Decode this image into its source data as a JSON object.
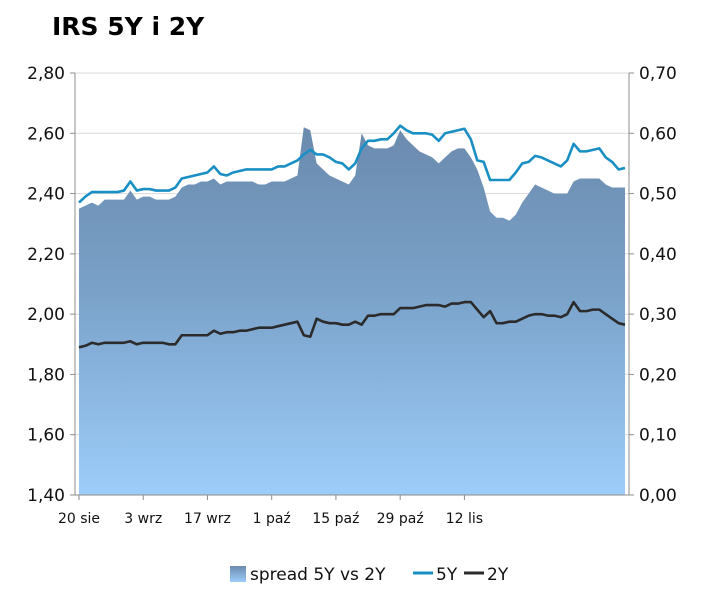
{
  "chart_data": {
    "type": "area",
    "title": "IRS 5Y i 2Y",
    "y_left": {
      "min": 1.4,
      "max": 2.8,
      "ticks": [
        "1,40",
        "1,60",
        "1,80",
        "2,00",
        "2,20",
        "2,40",
        "2,60",
        "2,80"
      ]
    },
    "y_right": {
      "min": 0.0,
      "max": 0.7,
      "ticks": [
        "0,00",
        "0,10",
        "0,20",
        "0,30",
        "0,40",
        "0,50",
        "0,60",
        "0,70"
      ]
    },
    "x_tick_labels": [
      {
        "label": "20 sie",
        "index": 0
      },
      {
        "label": "3 wrz",
        "index": 10
      },
      {
        "label": "17 wrz",
        "index": 20
      },
      {
        "label": "1 paź",
        "index": 30
      },
      {
        "label": "15 paź",
        "index": 40
      },
      {
        "label": "29 paź",
        "index": 50
      },
      {
        "label": "12 lis",
        "index": 60
      }
    ],
    "grid": "horizontal",
    "legend_position": "bottom",
    "legend": [
      "spread 5Y vs 2Y",
      "5Y",
      "2Y"
    ],
    "series": [
      {
        "name": "5Y",
        "axis": "left",
        "color": "#1a8fc4",
        "values": [
          2.37,
          2.39,
          2.405,
          2.405,
          2.405,
          2.405,
          2.405,
          2.41,
          2.44,
          2.41,
          2.415,
          2.415,
          2.41,
          2.41,
          2.41,
          2.42,
          2.45,
          2.455,
          2.46,
          2.465,
          2.47,
          2.49,
          2.465,
          2.46,
          2.47,
          2.475,
          2.48,
          2.48,
          2.48,
          2.48,
          2.48,
          2.49,
          2.49,
          2.5,
          2.51,
          2.53,
          2.545,
          2.53,
          2.53,
          2.52,
          2.505,
          2.5,
          2.48,
          2.5,
          2.55,
          2.575,
          2.575,
          2.58,
          2.58,
          2.6,
          2.625,
          2.61,
          2.6,
          2.6,
          2.6,
          2.595,
          2.575,
          2.6,
          2.605,
          2.61,
          2.615,
          2.58,
          2.51,
          2.505,
          2.445,
          2.445,
          2.445,
          2.445,
          2.47,
          2.5,
          2.505,
          2.525,
          2.52,
          2.51,
          2.5,
          2.49,
          2.51,
          2.565,
          2.54,
          2.54,
          2.545,
          2.55,
          2.52,
          2.505,
          2.48,
          2.485
        ]
      },
      {
        "name": "2Y",
        "axis": "left",
        "color": "#2b2b2b",
        "values": [
          1.89,
          1.895,
          1.905,
          1.9,
          1.905,
          1.905,
          1.905,
          1.905,
          1.91,
          1.9,
          1.905,
          1.905,
          1.905,
          1.905,
          1.9,
          1.9,
          1.93,
          1.93,
          1.93,
          1.93,
          1.93,
          1.945,
          1.935,
          1.94,
          1.94,
          1.945,
          1.945,
          1.95,
          1.955,
          1.955,
          1.955,
          1.96,
          1.965,
          1.97,
          1.975,
          1.93,
          1.925,
          1.985,
          1.975,
          1.97,
          1.97,
          1.965,
          1.965,
          1.975,
          1.965,
          1.995,
          1.995,
          2.0,
          2.0,
          2.0,
          2.02,
          2.02,
          2.02,
          2.025,
          2.03,
          2.03,
          2.03,
          2.025,
          2.035,
          2.035,
          2.04,
          2.04,
          2.015,
          1.99,
          2.01,
          1.97,
          1.97,
          1.975,
          1.975,
          1.985,
          1.995,
          2.0,
          2.0,
          1.995,
          1.995,
          1.99,
          2.0,
          2.04,
          2.01,
          2.01,
          2.015,
          2.015,
          2.0,
          1.985,
          1.97,
          1.965
        ]
      },
      {
        "name": "spread 5Y vs 2Y",
        "axis": "right",
        "color": "#6a8db4",
        "values": [
          0.475,
          0.48,
          0.485,
          0.48,
          0.49,
          0.49,
          0.49,
          0.49,
          0.505,
          0.49,
          0.495,
          0.495,
          0.49,
          0.49,
          0.49,
          0.495,
          0.51,
          0.515,
          0.515,
          0.52,
          0.52,
          0.525,
          0.515,
          0.52,
          0.52,
          0.52,
          0.52,
          0.52,
          0.515,
          0.515,
          0.52,
          0.52,
          0.52,
          0.525,
          0.53,
          0.61,
          0.605,
          0.55,
          0.54,
          0.53,
          0.525,
          0.52,
          0.515,
          0.53,
          0.6,
          0.58,
          0.575,
          0.575,
          0.575,
          0.58,
          0.605,
          0.59,
          0.58,
          0.57,
          0.565,
          0.56,
          0.55,
          0.56,
          0.57,
          0.575,
          0.575,
          0.56,
          0.54,
          0.51,
          0.47,
          0.46,
          0.46,
          0.455,
          0.465,
          0.485,
          0.5,
          0.515,
          0.51,
          0.505,
          0.5,
          0.5,
          0.5,
          0.52,
          0.525,
          0.525,
          0.525,
          0.525,
          0.515,
          0.51,
          0.51,
          0.51
        ]
      }
    ]
  }
}
